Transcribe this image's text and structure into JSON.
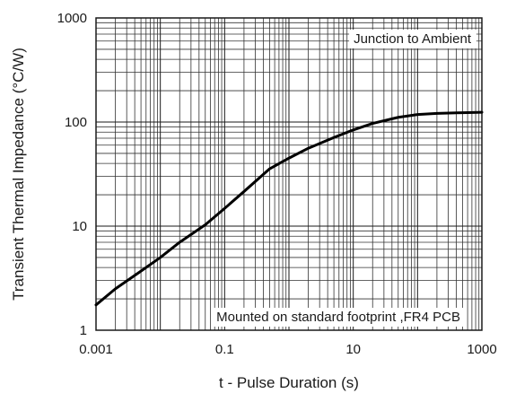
{
  "chart_data": {
    "type": "line",
    "title": "",
    "xlabel": "t - Pulse Duration (s)",
    "ylabel": "Transient Thermal Impedance (°C/W)",
    "xscale": "log",
    "yscale": "log",
    "xlim": [
      0.001,
      1000
    ],
    "ylim": [
      1,
      1000
    ],
    "grid": true,
    "x_tick_labels": [
      "0.001",
      "0.1",
      "10",
      "1000"
    ],
    "y_tick_labels": [
      "1",
      "10",
      "100",
      "1000"
    ],
    "annotations": [
      {
        "text": "Junction to Ambient",
        "position": "top-right"
      },
      {
        "text": "Mounted on standard footprint ,FR4 PCB",
        "position": "bottom-right"
      }
    ],
    "series": [
      {
        "x": [
          0.001,
          0.002,
          0.005,
          0.01,
          0.02,
          0.05,
          0.1,
          0.2,
          0.5,
          1,
          2,
          5,
          10,
          20,
          50,
          100,
          200,
          500,
          1000
        ],
        "y": [
          1.75,
          2.5,
          3.7,
          5.0,
          7.0,
          10.3,
          14.8,
          21.5,
          35.5,
          45,
          56,
          71,
          84,
          97,
          111,
          118,
          121,
          123,
          124
        ]
      }
    ]
  }
}
